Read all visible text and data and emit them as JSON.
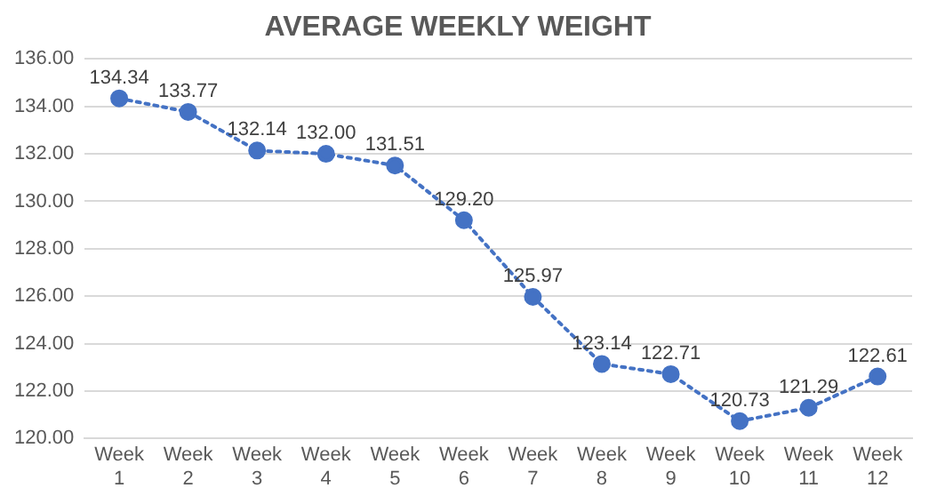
{
  "chart_data": {
    "type": "line",
    "title": "AVERAGE WEEKLY WEIGHT",
    "categories": [
      "Week 1",
      "Week 2",
      "Week 3",
      "Week 4",
      "Week 5",
      "Week 6",
      "Week 7",
      "Week 8",
      "Week 9",
      "Week 10",
      "Week 11",
      "Week 12"
    ],
    "series": [
      {
        "color": "#4472c4",
        "values": [
          134.34,
          133.77,
          132.14,
          132.0,
          131.51,
          129.2,
          125.97,
          123.14,
          122.71,
          120.73,
          121.29,
          122.61
        ],
        "value_labels": [
          "134.34",
          "133.77",
          "132.14",
          "132.00",
          "131.51",
          "129.20",
          "125.97",
          "123.14",
          "122.71",
          "120.73",
          "121.29",
          "122.61"
        ]
      }
    ],
    "ylim": [
      120,
      136
    ],
    "yticks": [
      {
        "value": 120,
        "label": "120.00"
      },
      {
        "value": 122,
        "label": "122.00"
      },
      {
        "value": 124,
        "label": "124.00"
      },
      {
        "value": 126,
        "label": "126.00"
      },
      {
        "value": 128,
        "label": "128.00"
      },
      {
        "value": 130,
        "label": "130.00"
      },
      {
        "value": 132,
        "label": "132.00"
      },
      {
        "value": 134,
        "label": "134.00"
      },
      {
        "value": 136,
        "label": "136.00"
      }
    ],
    "grid": "y",
    "legend": false,
    "marker": "circle",
    "line_style": "dotted"
  }
}
